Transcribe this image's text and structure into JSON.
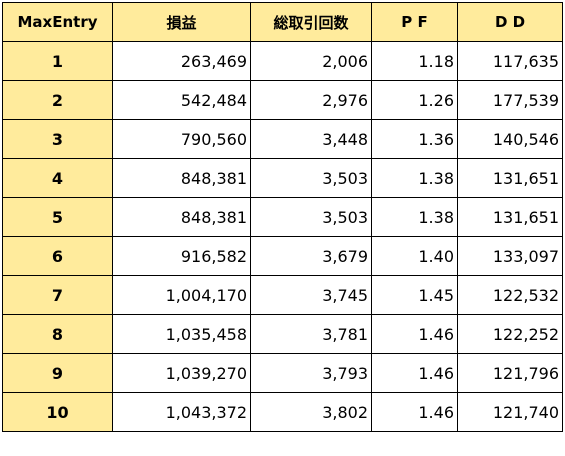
{
  "table": {
    "headers": [
      "MaxEntry",
      "損益",
      "総取引回数",
      "P F",
      "D D"
    ],
    "rows": [
      [
        "1",
        "263,469",
        "2,006",
        "1.18",
        "117,635"
      ],
      [
        "2",
        "542,484",
        "2,976",
        "1.26",
        "177,539"
      ],
      [
        "3",
        "790,560",
        "3,448",
        "1.36",
        "140,546"
      ],
      [
        "4",
        "848,381",
        "3,503",
        "1.38",
        "131,651"
      ],
      [
        "5",
        "848,381",
        "3,503",
        "1.38",
        "131,651"
      ],
      [
        "6",
        "916,582",
        "3,679",
        "1.40",
        "133,097"
      ],
      [
        "7",
        "1,004,170",
        "3,745",
        "1.45",
        "122,532"
      ],
      [
        "8",
        "1,035,458",
        "3,781",
        "1.46",
        "122,252"
      ],
      [
        "9",
        "1,039,270",
        "3,793",
        "1.46",
        "121,796"
      ],
      [
        "10",
        "1,043,372",
        "3,802",
        "1.46",
        "121,740"
      ]
    ]
  },
  "colors": {
    "header_fill": "#ffeb9c",
    "key_fill": "#ffeb9c",
    "border": "#000000",
    "cell_fill": "#ffffff"
  }
}
